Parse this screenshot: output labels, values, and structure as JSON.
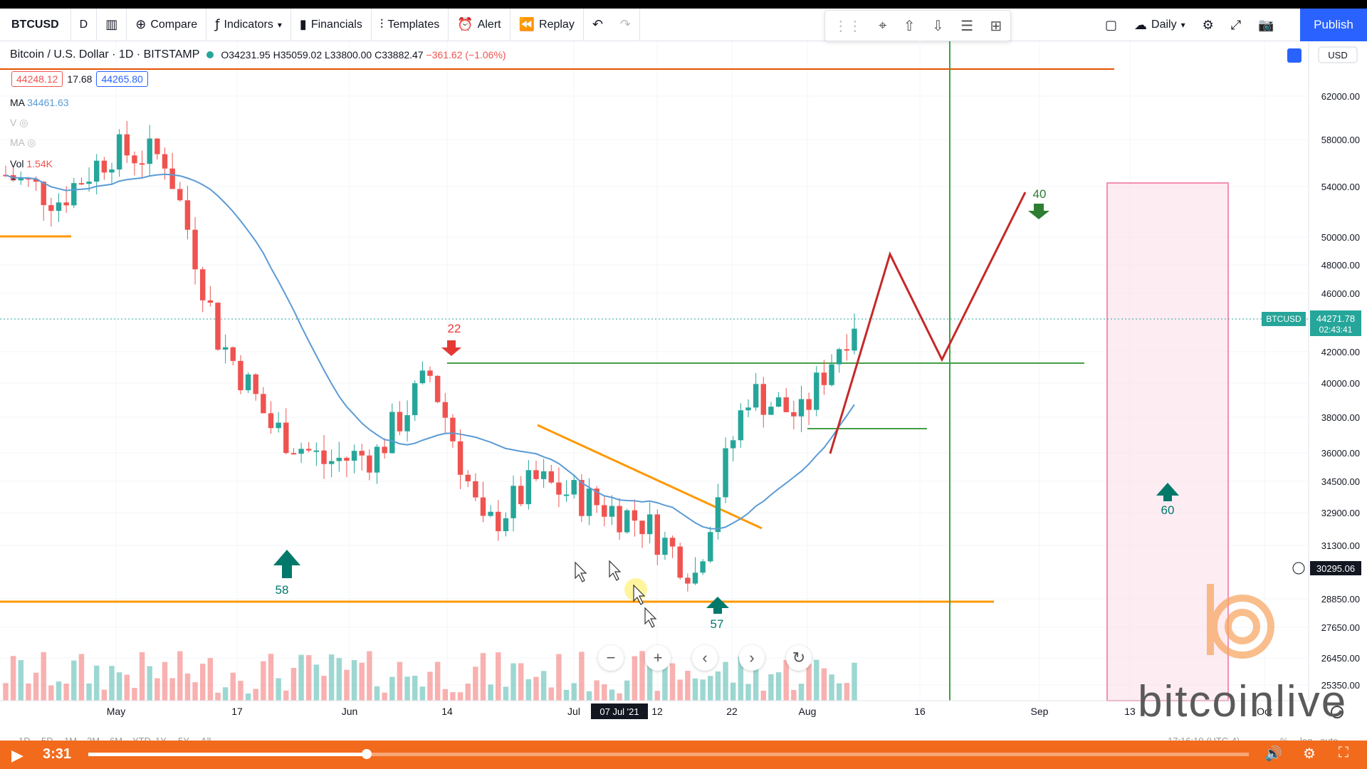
{
  "toolbar": {
    "symbol": "BTCUSD",
    "interval": "D",
    "compare": "Compare",
    "indicators": "Indicators",
    "financials": "Financials",
    "templates": "Templates",
    "alert": "Alert",
    "replay": "Replay",
    "timeframe": "Daily",
    "publish": "Publish"
  },
  "legend": {
    "title": "Bitcoin / U.S. Dollar · 1D · BITSTAMP",
    "open": "O34231.95",
    "high": "H35059.02",
    "low": "L33800.00",
    "close": "C33882.47",
    "change": "−361.62 (−1.06%)"
  },
  "quote": {
    "sell": "44248.12",
    "spread": "17.68",
    "buy": "44265.80"
  },
  "indicators": {
    "ma_label": "MA",
    "ma_value": "34461.63",
    "vol_label": "Vol",
    "vol_value": "1.54K",
    "vol_prefix": "V",
    "ma2_prefix": "MA"
  },
  "currency": "USD",
  "price_axis": [
    "62000.00",
    "58000.00",
    "54000.00",
    "50000.00",
    "48000.00",
    "46000.00",
    "42000.00",
    "40000.00",
    "38000.00",
    "36000.00",
    "34500.00",
    "32900.00",
    "31300.00",
    "28850.00",
    "27650.00",
    "26450.00",
    "25350.00"
  ],
  "last_price": {
    "symbol": "BTCUSD",
    "price": "44271.78",
    "countdown": "02:43:41"
  },
  "crosshair_price": "30295.06",
  "time_axis": [
    "May",
    "17",
    "Jun",
    "14",
    "Jul",
    "12",
    "22",
    "Aug",
    "16",
    "Sep",
    "13",
    "Oct"
  ],
  "time_cursor": "07 Jul '21",
  "range_buttons": [
    "1D",
    "5D",
    "1M",
    "3M",
    "6M",
    "YTD",
    "1Y",
    "5Y",
    "All"
  ],
  "clock": "17:16:19 (UTC-4)",
  "axis_opts": [
    "%",
    "log",
    "auto"
  ],
  "annotations": {
    "a22": "22",
    "a58": "58",
    "a57": "57",
    "a40": "40",
    "a60": "60"
  },
  "watermark": "bitcoinlive",
  "player": {
    "time": "3:31",
    "progress": 0.24
  },
  "colors": {
    "up": "#26a69a",
    "down": "#ef5350",
    "accent": "#2962ff",
    "player": "#f26b1d"
  },
  "chart_data": {
    "type": "candlestick",
    "x": [
      "2021-04-19",
      "2021-04-26",
      "2021-05-03",
      "2021-05-10",
      "2021-05-17",
      "2021-05-24",
      "2021-05-31",
      "2021-06-07",
      "2021-06-14",
      "2021-06-21",
      "2021-06-28",
      "2021-07-05",
      "2021-07-12",
      "2021-07-19",
      "2021-07-26",
      "2021-08-02",
      "2021-08-06"
    ],
    "series": [
      {
        "close": [
          55000,
          53000,
          57000,
          56500,
          43000,
          37500,
          35500,
          36000,
          40500,
          32000,
          34500,
          33500,
          32500,
          30000,
          39500,
          38000,
          44271.78
        ]
      }
    ],
    "ylim": [
      25000,
      64000
    ]
  }
}
